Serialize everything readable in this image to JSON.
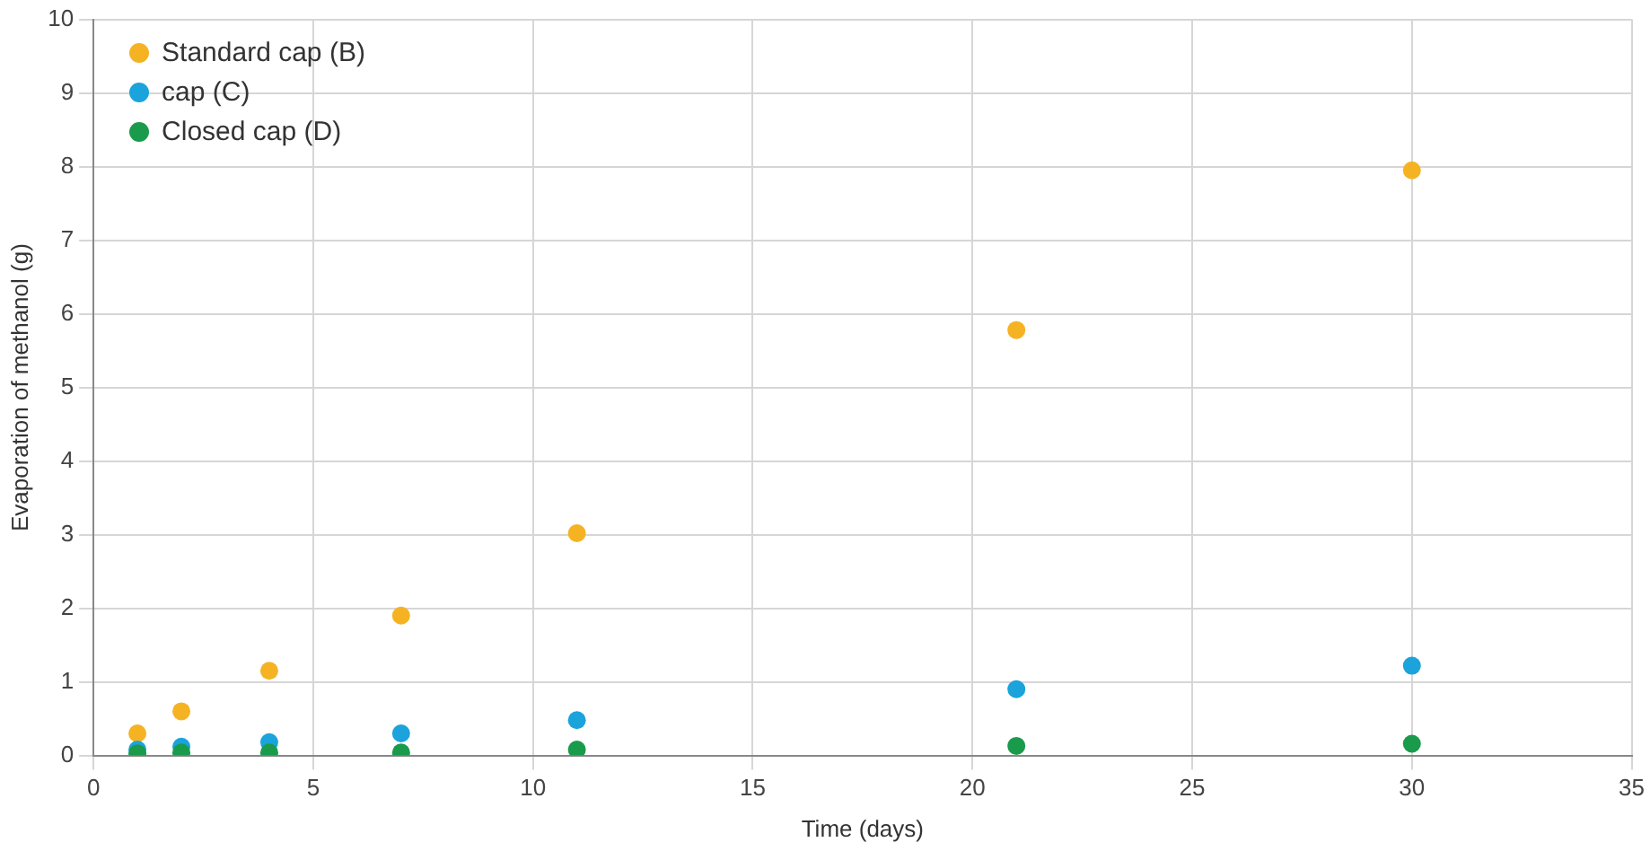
{
  "chart_data": {
    "type": "scatter",
    "xlabel": "Time (days)",
    "ylabel": "Evaporation of methanol (g)",
    "x": [
      1,
      2,
      4,
      7,
      11,
      21,
      30
    ],
    "series": [
      {
        "name": "Standard cap (B)",
        "color": "#f5b324",
        "values": [
          0.3,
          0.6,
          1.15,
          1.9,
          3.02,
          5.78,
          7.95
        ]
      },
      {
        "name": "cap (C)",
        "color": "#1ba3dc",
        "values": [
          0.08,
          0.12,
          0.18,
          0.3,
          0.48,
          0.9,
          1.22
        ]
      },
      {
        "name": "Closed cap (D)",
        "color": "#1a9b4b",
        "values": [
          0.03,
          0.04,
          0.04,
          0.04,
          0.08,
          0.13,
          0.16
        ]
      }
    ],
    "xlim": [
      0,
      35
    ],
    "xticks": [
      0,
      5,
      10,
      15,
      20,
      25,
      30,
      35
    ],
    "ylim": [
      0,
      10
    ],
    "yticks": [
      0,
      1,
      2,
      3,
      4,
      5,
      6,
      7,
      8,
      9,
      10
    ],
    "grid": true,
    "legend": "top left",
    "marker": "circle"
  }
}
